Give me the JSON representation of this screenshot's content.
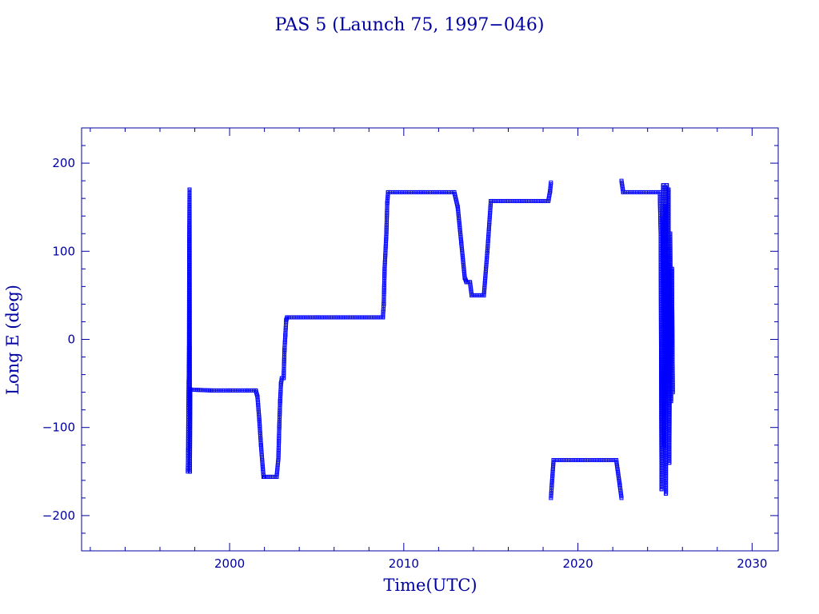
{
  "colors": {
    "axis": "#0000a0",
    "series": "#0000ff"
  },
  "chart_data": {
    "type": "line",
    "title": "PAS 5 (Launch 75, 1997−046)",
    "xlabel": "Time(UTC)",
    "ylabel": "Long E (deg)",
    "xlim": [
      1991.5,
      2031.5
    ],
    "ylim": [
      -240,
      240
    ],
    "x_ticks": [
      2000,
      2010,
      2020,
      2030
    ],
    "x_tick_labels": [
      "2000",
      "2010",
      "2020",
      "2030"
    ],
    "y_ticks": [
      200,
      100,
      0,
      -100,
      -200
    ],
    "y_tick_labels": [
      "200",
      "100",
      "0",
      "−100",
      "−200"
    ],
    "marker": "square",
    "series": [
      {
        "segments": [
          [
            [
              1997.6,
              -150
            ],
            [
              1997.62,
              -125
            ],
            [
              1997.63,
              -88
            ],
            [
              1997.65,
              -48
            ],
            [
              1997.66,
              -30
            ],
            [
              1997.67,
              -10
            ],
            [
              1997.68,
              110
            ],
            [
              1997.69,
              128
            ],
            [
              1997.7,
              170
            ],
            [
              1997.71,
              -10
            ],
            [
              1997.72,
              -150
            ],
            [
              1997.74,
              -57
            ],
            [
              1999,
              -58
            ],
            [
              2000,
              -58
            ],
            [
              2001,
              -58
            ],
            [
              2001.5,
              -58
            ],
            [
              2001.6,
              -65
            ],
            [
              2001.7,
              -90
            ],
            [
              2001.8,
              -120
            ],
            [
              2001.9,
              -145
            ],
            [
              2001.95,
              -156
            ],
            [
              2002,
              -156
            ],
            [
              2002.7,
              -156
            ],
            [
              2002.8,
              -135
            ],
            [
              2002.85,
              -100
            ],
            [
              2002.9,
              -70
            ],
            [
              2002.95,
              -50
            ],
            [
              2003,
              -44
            ],
            [
              2003.1,
              -44
            ],
            [
              2003.15,
              -12
            ],
            [
              2003.2,
              5
            ],
            [
              2003.25,
              22
            ],
            [
              2003.3,
              25
            ],
            [
              2005,
              25
            ],
            [
              2008.8,
              25
            ],
            [
              2008.85,
              40
            ],
            [
              2008.9,
              80
            ],
            [
              2009,
              120
            ],
            [
              2009.05,
              155
            ],
            [
              2009.1,
              167
            ],
            [
              2011,
              167
            ],
            [
              2012.9,
              167
            ],
            [
              2013.1,
              150
            ],
            [
              2013.3,
              110
            ],
            [
              2013.5,
              70
            ],
            [
              2013.6,
              65
            ],
            [
              2013.8,
              65
            ],
            [
              2013.9,
              50
            ],
            [
              2014.6,
              50
            ],
            [
              2014.8,
              100
            ],
            [
              2015,
              157
            ],
            [
              2016,
              157
            ],
            [
              2018.3,
              157
            ],
            [
              2018.4,
              168
            ],
            [
              2018.45,
              178
            ]
          ],
          [
            [
              2018.45,
              -180
            ],
            [
              2018.5,
              -165
            ],
            [
              2018.6,
              -137
            ],
            [
              2020,
              -137
            ],
            [
              2022.2,
              -137
            ],
            [
              2022.4,
              -165
            ],
            [
              2022.5,
              -180
            ]
          ],
          [
            [
              2022.5,
              180
            ],
            [
              2022.6,
              167
            ],
            [
              2024.7,
              167
            ],
            [
              2024.75,
              120
            ],
            [
              2024.8,
              -170
            ],
            [
              2024.85,
              80
            ],
            [
              2024.9,
              175
            ],
            [
              2024.95,
              -120
            ],
            [
              2025,
              150
            ],
            [
              2025.05,
              -175
            ],
            [
              2025.1,
              175
            ],
            [
              2025.15,
              -60
            ],
            [
              2025.2,
              170
            ],
            [
              2025.25,
              -140
            ],
            [
              2025.3,
              120
            ],
            [
              2025.35,
              -70
            ],
            [
              2025.4,
              80
            ],
            [
              2025.45,
              -60
            ]
          ]
        ]
      }
    ]
  }
}
